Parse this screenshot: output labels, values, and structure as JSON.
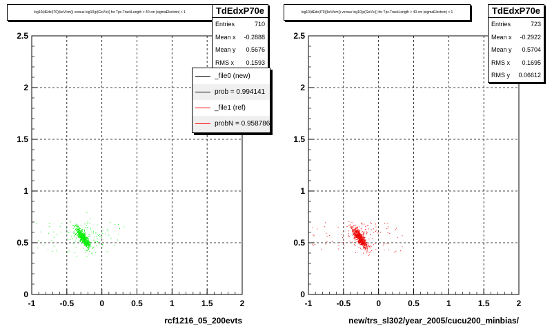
{
  "chart_data": [
    {
      "type": "scatter",
      "title": "log10(dEdx(I70)(keV/cm)) versus log10(p(GeV/c)) for Tpc.TrackLength > 40 cm |sigmaElectron| < 1",
      "xlabel": "rcf1216_05_200evts",
      "ylabel": "",
      "xlim": [
        -1,
        2
      ],
      "ylim": [
        0,
        2.5
      ],
      "x_ticks": [
        "-1",
        "-0.5",
        "0",
        "0.5",
        "1",
        "1.5",
        "2"
      ],
      "y_ticks": [
        "0",
        "0.5",
        "1",
        "1.5",
        "2",
        "2.5"
      ],
      "grid": true,
      "color": "#00ee00",
      "stats": {
        "name": "TdEdxP70e",
        "rows": [
          {
            "label": "Entries",
            "value": "710"
          },
          {
            "label": "Mean x",
            "value": "-0.2888"
          },
          {
            "label": "Mean y",
            "value": "0.5676"
          },
          {
            "label": "RMS x",
            "value": "0.1593"
          }
        ]
      },
      "legend": {
        "placement": "top-right",
        "entries": [
          {
            "label": "_file0 (new)",
            "color": "#000000"
          },
          {
            "label": "prob = 0.994141",
            "color": "#000000"
          },
          {
            "label": "_file1 (ref)",
            "color": "#ff0000"
          },
          {
            "label": "probN = 0.958786",
            "color": "#ff0000"
          }
        ]
      }
    },
    {
      "type": "scatter",
      "title": "log10(dEdx(I70)(keV/cm)) versus log10(p(GeV/c)) for Tpc.TrackLength > 40 cm |sigmaElectron| < 1",
      "xlabel": "new/trs_sl302/year_2005/cucu200_minbias/",
      "ylabel": "",
      "xlim": [
        -1,
        2
      ],
      "ylim": [
        0,
        2.5
      ],
      "x_ticks": [
        "-1",
        "-0.5",
        "0",
        "0.5",
        "1",
        "1.5",
        "2"
      ],
      "y_ticks": [
        "0",
        "0.5",
        "1",
        "1.5",
        "2",
        "2.5"
      ],
      "grid": true,
      "color": "#ee0000",
      "stats": {
        "name": "TdEdxP70e",
        "rows": [
          {
            "label": "Entries",
            "value": "723"
          },
          {
            "label": "Mean x",
            "value": "-0.2922"
          },
          {
            "label": "Mean y",
            "value": "0.5704"
          },
          {
            "label": "RMS x",
            "value": "0.1695"
          },
          {
            "label": "RMS y",
            "value": "0.06612"
          }
        ]
      }
    }
  ]
}
